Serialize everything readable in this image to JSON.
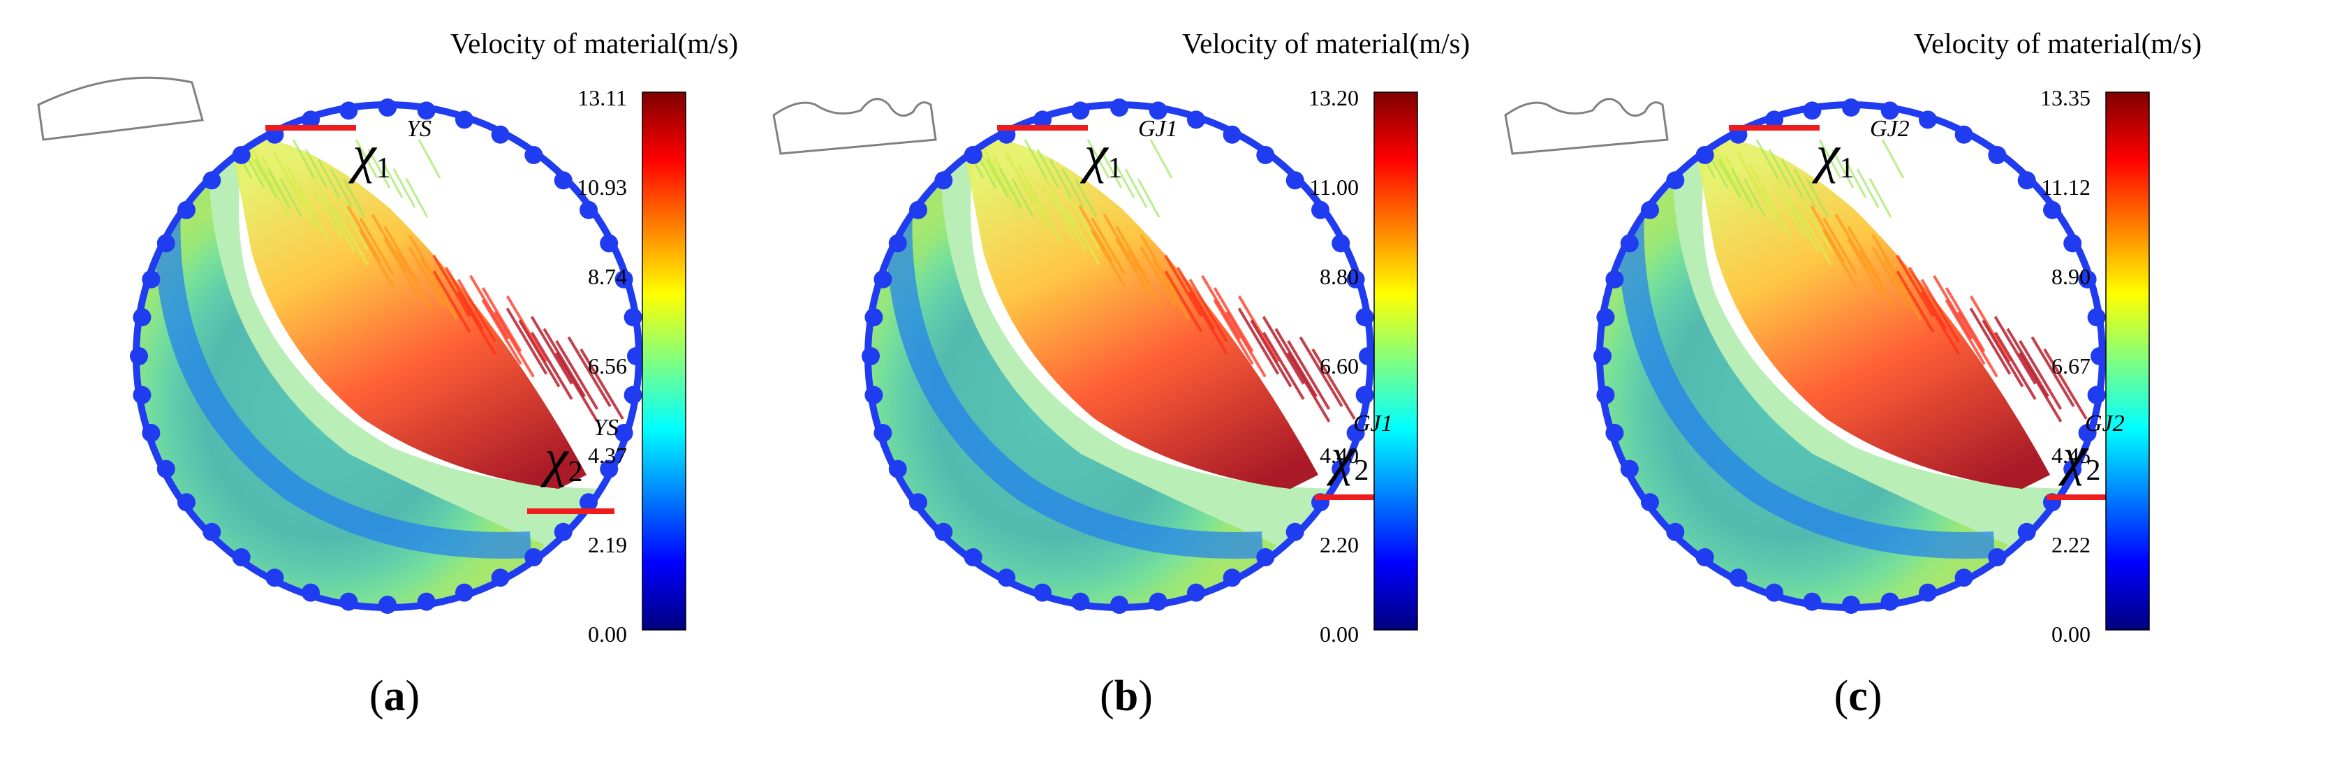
{
  "figure": {
    "colorbar_title": "Velocity of material(m/s)",
    "colormap": [
      "#00007f",
      "#0000ff",
      "#0080ff",
      "#00ffff",
      "#80ff80",
      "#ffff00",
      "#ff8000",
      "#ff0000",
      "#7f0000"
    ],
    "panels": [
      {
        "label": "a",
        "profile": "arc",
        "ticks": [
          "13.11",
          "10.93",
          "8.74",
          "6.56",
          "4.37",
          "2.19",
          "0.00"
        ],
        "chi1_label": "χ",
        "chi1_sub": "1",
        "chi1_sup": "YS",
        "chi2_label": "χ",
        "chi2_sub": "2",
        "chi2_sup": "YS"
      },
      {
        "label": "b",
        "profile": "wave",
        "ticks": [
          "13.20",
          "11.00",
          "8.80",
          "6.60",
          "4.40",
          "2.20",
          "0.00"
        ],
        "chi1_label": "χ",
        "chi1_sub": "1",
        "chi1_sup": "GJ1",
        "chi2_label": "χ",
        "chi2_sub": "2",
        "chi2_sup": "GJ1"
      },
      {
        "label": "c",
        "profile": "wave",
        "ticks": [
          "13.35",
          "11.12",
          "8.90",
          "6.67",
          "4.45",
          "2.22",
          "0.00"
        ],
        "chi1_label": "χ",
        "chi1_sub": "1",
        "chi1_sup": "GJ2",
        "chi2_label": "χ",
        "chi2_sub": "2",
        "chi2_sup": "GJ2"
      }
    ]
  }
}
